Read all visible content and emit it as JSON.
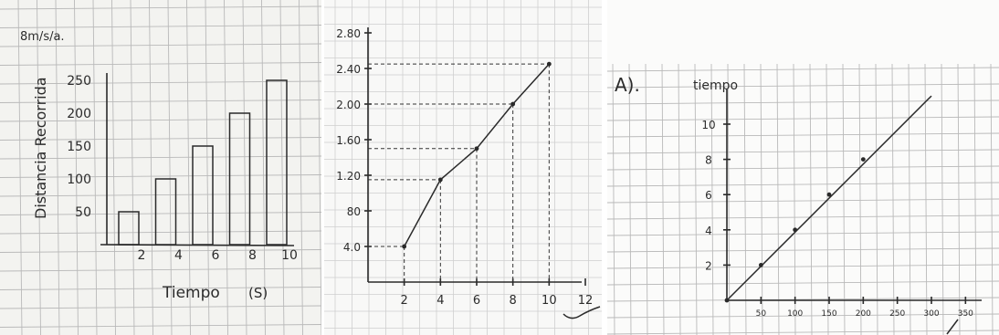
{
  "chart_data": [
    {
      "type": "bar",
      "ylabel": "Distancia Recorrida",
      "ylabel_corner": "8m/s/a.",
      "xlabel": "Tiempo",
      "xlabel_unit": "(S)",
      "categories": [
        "2",
        "4",
        "6",
        "8",
        "10"
      ],
      "values": [
        50,
        100,
        150,
        200,
        250
      ],
      "yticks": [
        "50",
        "100",
        "150",
        "200",
        "250"
      ],
      "grid": true
    },
    {
      "type": "line",
      "x": [
        2,
        4,
        6,
        8,
        10
      ],
      "y": [
        40,
        115,
        150,
        200,
        245
      ],
      "xticks": [
        "2",
        "4",
        "6",
        "8",
        "10",
        "12"
      ],
      "yticks": [
        "4.0",
        "80",
        "1.20",
        "1.60",
        "2.00",
        "2.40",
        "2.80"
      ],
      "xlim": [
        0,
        12
      ],
      "ylim": [
        0,
        280
      ],
      "grid": true
    },
    {
      "type": "line",
      "panel_label": "A).",
      "ylabel": "tiempo",
      "x": [
        0,
        50,
        100,
        150,
        200
      ],
      "y": [
        0,
        2,
        4,
        6,
        8
      ],
      "xticks": [
        "50",
        "100",
        "150",
        "200",
        "250",
        "300",
        "350"
      ],
      "yticks": [
        "2",
        "4",
        "6",
        "8",
        "10"
      ],
      "xlim": [
        0,
        350
      ],
      "ylim": [
        0,
        12
      ],
      "grid": true
    }
  ]
}
